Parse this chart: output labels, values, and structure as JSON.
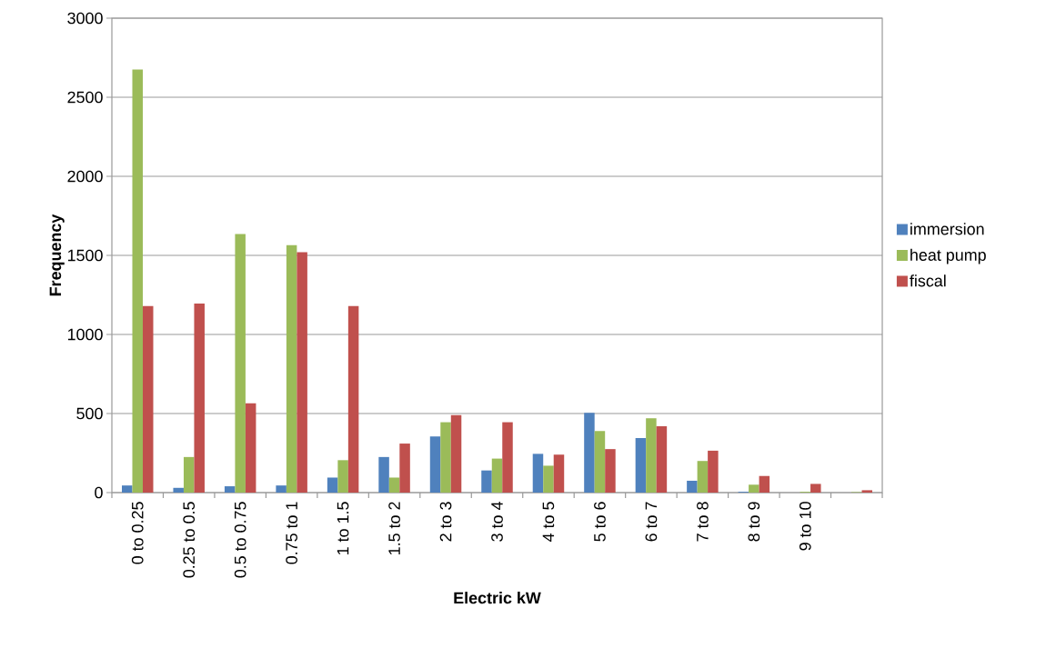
{
  "chart_data": {
    "type": "bar",
    "xlabel": "Electric kW",
    "ylabel": "Frequency",
    "categories": [
      "0 to 0.25",
      "0.25 to 0.5",
      "0.5 to 0.75",
      "0.75 to 1",
      "1 to 1.5",
      "1.5 to 2",
      "2 to 3",
      "3 to 4",
      "4 to 5",
      "5 to 6",
      "6 to 7",
      "7 to 8",
      "8 to 9",
      "9 to 10",
      null
    ],
    "series": [
      {
        "name": "immersion",
        "color": "#4f81bd",
        "values": [
          45,
          30,
          40,
          45,
          95,
          225,
          355,
          140,
          245,
          505,
          345,
          75,
          5,
          null,
          null
        ]
      },
      {
        "name": "heat pump",
        "color": "#9bbb59",
        "values": [
          2675,
          225,
          1635,
          1565,
          205,
          95,
          445,
          215,
          170,
          390,
          470,
          200,
          50,
          5,
          3
        ]
      },
      {
        "name": "fiscal",
        "color": "#c0504d",
        "values": [
          1180,
          1195,
          565,
          1520,
          1180,
          310,
          490,
          445,
          240,
          275,
          420,
          265,
          105,
          55,
          15
        ]
      }
    ],
    "ylim": [
      0,
      3000
    ],
    "yticks": [
      0,
      500,
      1000,
      1500,
      2000,
      2500,
      3000
    ],
    "grid": "y",
    "legend": "right"
  }
}
